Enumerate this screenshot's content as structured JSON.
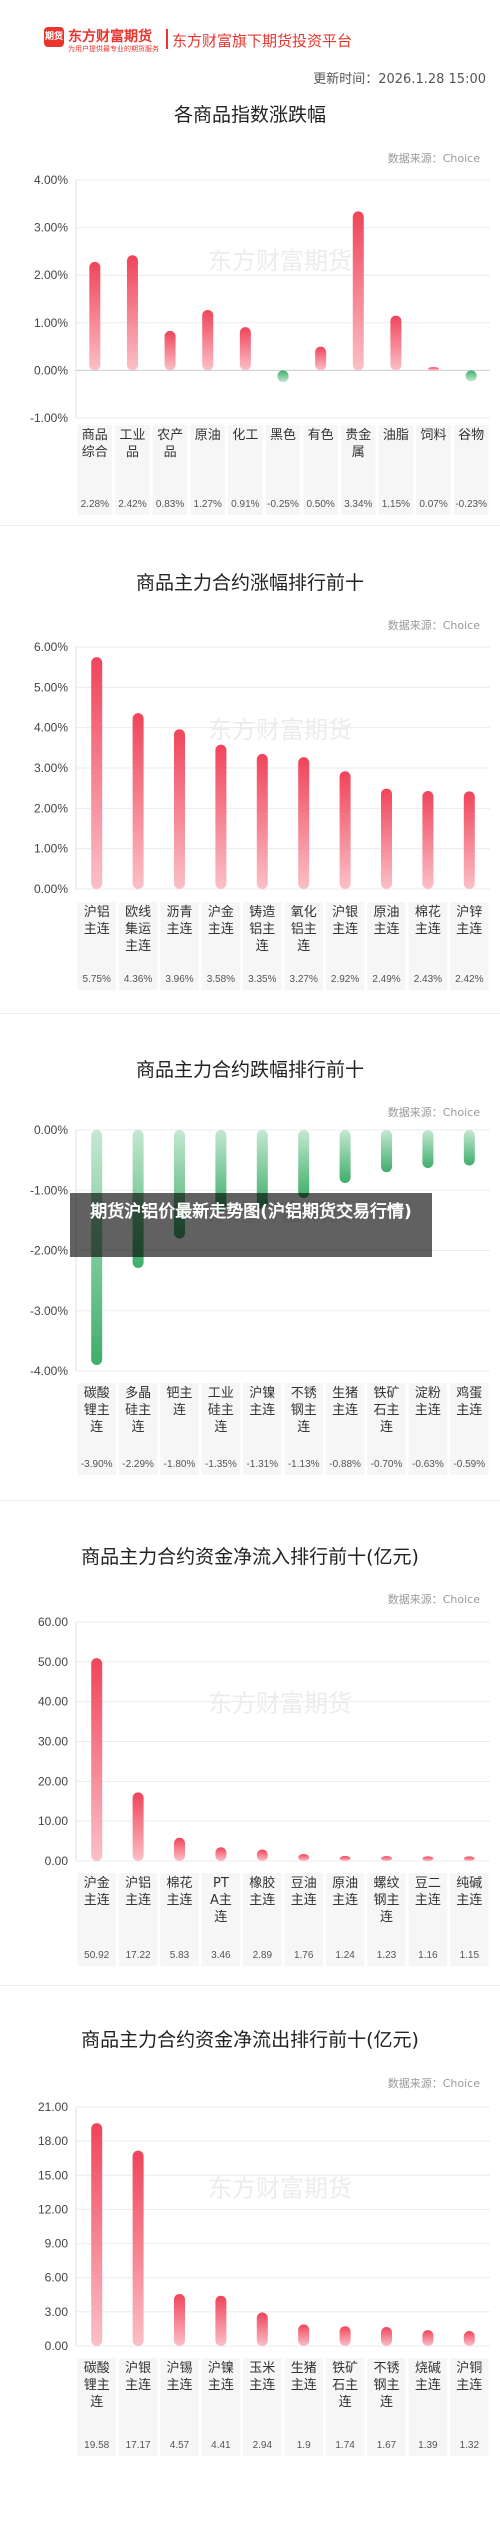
{
  "header": {
    "logo_mark": "期货",
    "brand": "东方财富期货",
    "slogan": "为用户提供最专业的期货服务",
    "platform": "东方财富旗下期货投资平台"
  },
  "update_time": "更新时间：2026.1.28 15:00",
  "source_label": "数据来源：Choice",
  "watermark": "东方财富期货",
  "overlay_text": "期货沪铝价最新走势图(沪铝期货交易行情)",
  "colors": {
    "up": "#f0445a",
    "down": "#3fae6a",
    "brand": "#e8362f"
  },
  "chart_data": [
    {
      "type": "bar",
      "title": "各商品指数涨跌幅",
      "categories": [
        "商品综合",
        "工业品",
        "农产品",
        "原油",
        "化工",
        "黑色",
        "有色",
        "贵金属",
        "油脂",
        "饲料",
        "谷物"
      ],
      "values": [
        2.28,
        2.42,
        0.83,
        1.27,
        0.91,
        -0.25,
        0.5,
        3.34,
        1.15,
        0.07,
        -0.23
      ],
      "value_labels": [
        "2.28%",
        "2.42%",
        "0.83%",
        "1.27%",
        "0.91%",
        "-0.25%",
        "0.50%",
        "3.34%",
        "1.15%",
        "0.07%",
        "-0.23%"
      ],
      "y_ticks": [
        "4.00%",
        "3.00%",
        "2.00%",
        "1.00%",
        "0.00%",
        "-1.00%"
      ],
      "ylim": [
        -1,
        4
      ]
    },
    {
      "type": "bar",
      "title": "商品主力合约涨幅排行前十",
      "categories": [
        "沪铝主连",
        "欧线集运主连",
        "沥青主连",
        "沪金主连",
        "铸造铝主连",
        "氧化铝主连",
        "沪银主连",
        "原油主连",
        "棉花主连",
        "沪锌主连"
      ],
      "values": [
        5.75,
        4.36,
        3.96,
        3.58,
        3.35,
        3.27,
        2.92,
        2.49,
        2.43,
        2.42
      ],
      "value_labels": [
        "5.75%",
        "4.36%",
        "3.96%",
        "3.58%",
        "3.35%",
        "3.27%",
        "2.92%",
        "2.49%",
        "2.43%",
        "2.42%"
      ],
      "y_ticks": [
        "6.00%",
        "5.00%",
        "4.00%",
        "3.00%",
        "2.00%",
        "1.00%",
        "0.00%"
      ],
      "ylim": [
        0,
        6
      ]
    },
    {
      "type": "bar",
      "title": "商品主力合约跌幅排行前十",
      "categories": [
        "碳酸锂主连",
        "多晶硅主连",
        "钯主连",
        "工业硅主连",
        "沪镍主连",
        "不锈钢主连",
        "生猪主连",
        "铁矿石主连",
        "淀粉主连",
        "鸡蛋主连"
      ],
      "values": [
        -3.9,
        -2.29,
        -1.8,
        -1.35,
        -1.31,
        -1.13,
        -0.88,
        -0.7,
        -0.63,
        -0.59
      ],
      "value_labels": [
        "-3.90%",
        "-2.29%",
        "-1.80%",
        "-1.35%",
        "-1.31%",
        "-1.13%",
        "-0.88%",
        "-0.70%",
        "-0.63%",
        "-0.59%"
      ],
      "y_ticks": [
        "0.00%",
        "-1.00%",
        "-2.00%",
        "-3.00%",
        "-4.00%"
      ],
      "ylim": [
        -4,
        0
      ]
    },
    {
      "type": "bar",
      "title": "商品主力合约资金净流入排行前十(亿元)",
      "categories": [
        "沪金主连",
        "沪铝主连",
        "棉花主连",
        "PTA主连",
        "橡胶主连",
        "豆油主连",
        "原油主连",
        "螺纹钢主连",
        "豆二主连",
        "纯碱主连"
      ],
      "values": [
        50.92,
        17.22,
        5.83,
        3.46,
        2.89,
        1.76,
        1.24,
        1.23,
        1.16,
        1.15
      ],
      "value_labels": [
        "50.92",
        "17.22",
        "5.83",
        "3.46",
        "2.89",
        "1.76",
        "1.24",
        "1.23",
        "1.16",
        "1.15"
      ],
      "y_ticks": [
        "60.00",
        "50.00",
        "40.00",
        "30.00",
        "20.00",
        "10.00",
        "0.00"
      ],
      "ylim": [
        0,
        60
      ]
    },
    {
      "type": "bar",
      "title": "商品主力合约资金净流出排行前十(亿元)",
      "categories": [
        "碳酸锂主连",
        "沪银主连",
        "沪锡主连",
        "沪镍主连",
        "玉米主连",
        "生猪主连",
        "铁矿石主连",
        "不锈钢主连",
        "烧碱主连",
        "沪铜主连"
      ],
      "values": [
        19.58,
        17.17,
        4.57,
        4.41,
        2.94,
        1.9,
        1.74,
        1.67,
        1.39,
        1.32
      ],
      "value_labels": [
        "19.58",
        "17.17",
        "4.57",
        "4.41",
        "2.94",
        "1.9",
        "1.74",
        "1.67",
        "1.39",
        "1.32"
      ],
      "y_ticks": [
        "21.00",
        "18.00",
        "15.00",
        "12.00",
        "9.00",
        "6.00",
        "3.00",
        "0.00"
      ],
      "ylim": [
        0,
        21
      ]
    }
  ]
}
